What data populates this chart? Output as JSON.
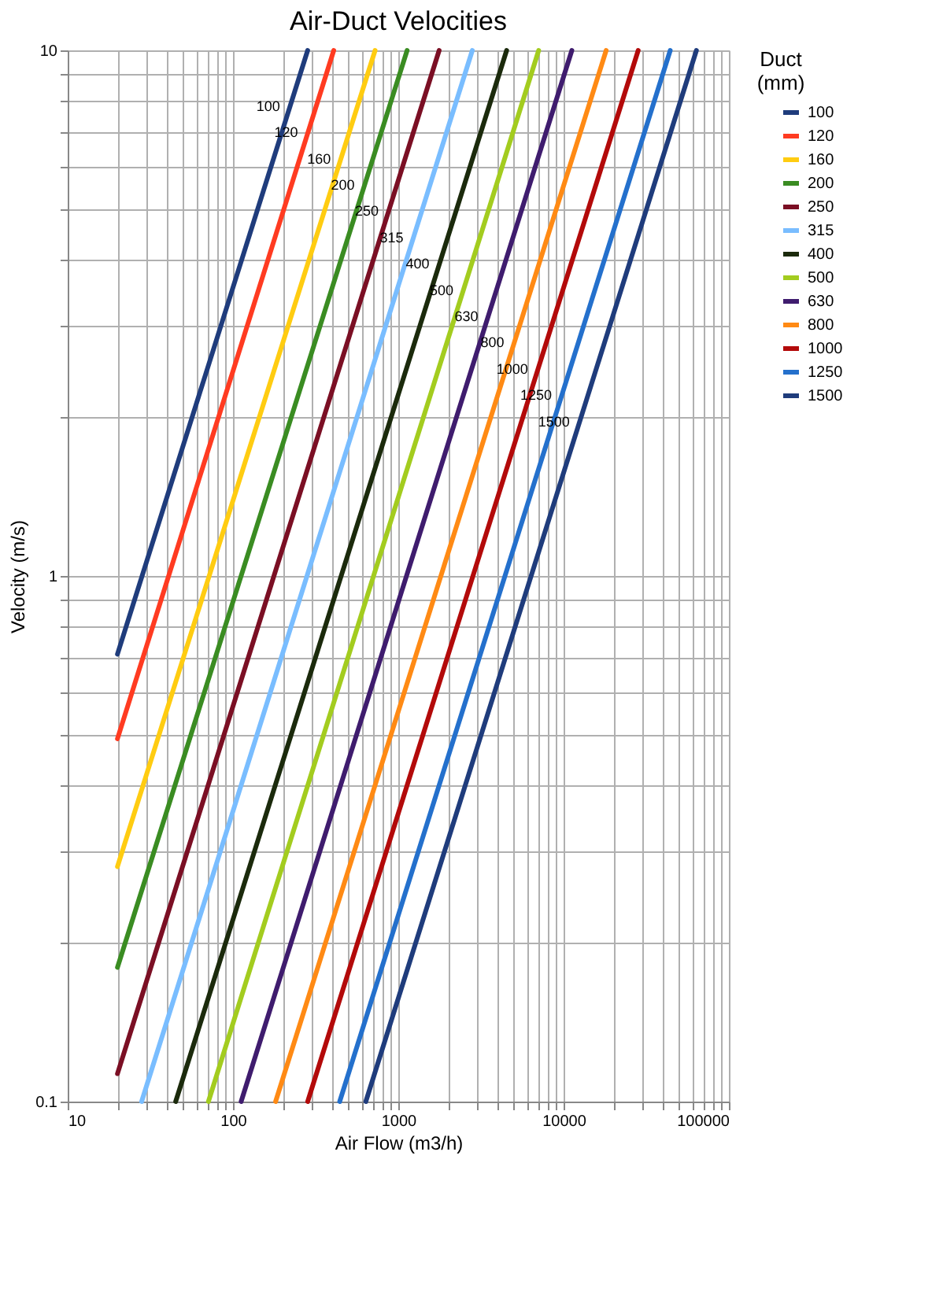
{
  "chart_data": {
    "type": "line",
    "title": "Air-Duct Velocities",
    "xlabel": "Air Flow (m3/h)",
    "ylabel": "Velocity (m/s)",
    "legend_title": "Duct (mm)",
    "legend": "right",
    "log": "xy",
    "grid": true,
    "line_style": "solid",
    "marker": "none",
    "xlim": [
      10,
      100000
    ],
    "ylim": [
      0.1,
      10
    ],
    "xticks": [
      10,
      {
        "value": 20,
        "label": null
      },
      {
        "value": 30,
        "label": null
      },
      {
        "value": 40,
        "label": null
      },
      {
        "value": 50,
        "label": null
      },
      {
        "value": 60,
        "label": null
      },
      {
        "value": 70,
        "label": null
      },
      {
        "value": 80,
        "label": null
      },
      {
        "value": 90,
        "label": null
      },
      100,
      {
        "value": 200,
        "label": null
      },
      {
        "value": 300,
        "label": null
      },
      {
        "value": 400,
        "label": null
      },
      {
        "value": 500,
        "label": null
      },
      {
        "value": 600,
        "label": null
      },
      {
        "value": 700,
        "label": null
      },
      {
        "value": 800,
        "label": null
      },
      {
        "value": 900,
        "label": null
      },
      1000,
      {
        "value": 2000,
        "label": null
      },
      {
        "value": 3000,
        "label": null
      },
      {
        "value": 4000,
        "label": null
      },
      {
        "value": 5000,
        "label": null
      },
      {
        "value": 6000,
        "label": null
      },
      {
        "value": 7000,
        "label": null
      },
      {
        "value": 8000,
        "label": null
      },
      {
        "value": 9000,
        "label": null
      },
      10000,
      {
        "value": 20000,
        "label": null
      },
      {
        "value": 30000,
        "label": null
      },
      {
        "value": 40000,
        "label": null
      },
      {
        "value": 50000,
        "label": null
      },
      {
        "value": 60000,
        "label": null
      },
      {
        "value": 70000,
        "label": null
      },
      {
        "value": 80000,
        "label": null
      },
      {
        "value": 90000,
        "label": null
      },
      100000
    ],
    "yticks": [
      0.1,
      {
        "value": 0.2,
        "label": null
      },
      {
        "value": 0.3,
        "label": null
      },
      {
        "value": 0.4,
        "label": null
      },
      {
        "value": 0.5,
        "label": null
      },
      {
        "value": 0.6,
        "label": null
      },
      {
        "value": 0.7,
        "label": null
      },
      {
        "value": 0.8,
        "label": null
      },
      {
        "value": 0.9,
        "label": null
      },
      1,
      {
        "value": 2,
        "label": null
      },
      {
        "value": 3,
        "label": null
      },
      {
        "value": 4,
        "label": null
      },
      {
        "value": 5,
        "label": null
      },
      {
        "value": 6,
        "label": null
      },
      {
        "value": 7,
        "label": null
      },
      {
        "value": 8,
        "label": null
      },
      {
        "value": 9,
        "label": null
      },
      10
    ],
    "series": [
      {
        "name": "100",
        "color": "#1f3c7c",
        "x": [
          20,
          283
        ],
        "values": [
          0.71,
          10
        ]
      },
      {
        "name": "120",
        "color": "#ff3b21",
        "x": [
          20,
          407
        ],
        "values": [
          0.49,
          10
        ]
      },
      {
        "name": "160",
        "color": "#ffcc11",
        "x": [
          20,
          724
        ],
        "values": [
          0.28,
          10
        ]
      },
      {
        "name": "200",
        "color": "#3a8c22",
        "x": [
          20,
          1131
        ],
        "values": [
          0.18,
          10
        ]
      },
      {
        "name": "250",
        "color": "#7b0f24",
        "x": [
          20,
          1767
        ],
        "values": [
          0.113,
          10
        ]
      },
      {
        "name": "315",
        "color": "#79bdff",
        "x": [
          28,
          2805
        ],
        "values": [
          0.1,
          10
        ]
      },
      {
        "name": "400",
        "color": "#1b2a0c",
        "x": [
          45,
          4524
        ],
        "values": [
          0.1,
          10
        ]
      },
      {
        "name": "500",
        "color": "#a3cc1f",
        "x": [
          71,
          7069
        ],
        "values": [
          0.1,
          10
        ]
      },
      {
        "name": "630",
        "color": "#3f1c6e",
        "x": [
          112,
          11222
        ],
        "values": [
          0.1,
          10
        ]
      },
      {
        "name": "800",
        "color": "#ff8a14",
        "x": [
          181,
          18096
        ],
        "values": [
          0.1,
          10
        ]
      },
      {
        "name": "1000",
        "color": "#b30a0a",
        "x": [
          283,
          28274
        ],
        "values": [
          0.1,
          10
        ]
      },
      {
        "name": "1250",
        "color": "#2470cc",
        "x": [
          442,
          44179
        ],
        "values": [
          0.1,
          10
        ]
      },
      {
        "name": "1500",
        "color": "#1f3c7c",
        "x": [
          636,
          63617
        ],
        "values": [
          0.1,
          10
        ]
      }
    ]
  }
}
